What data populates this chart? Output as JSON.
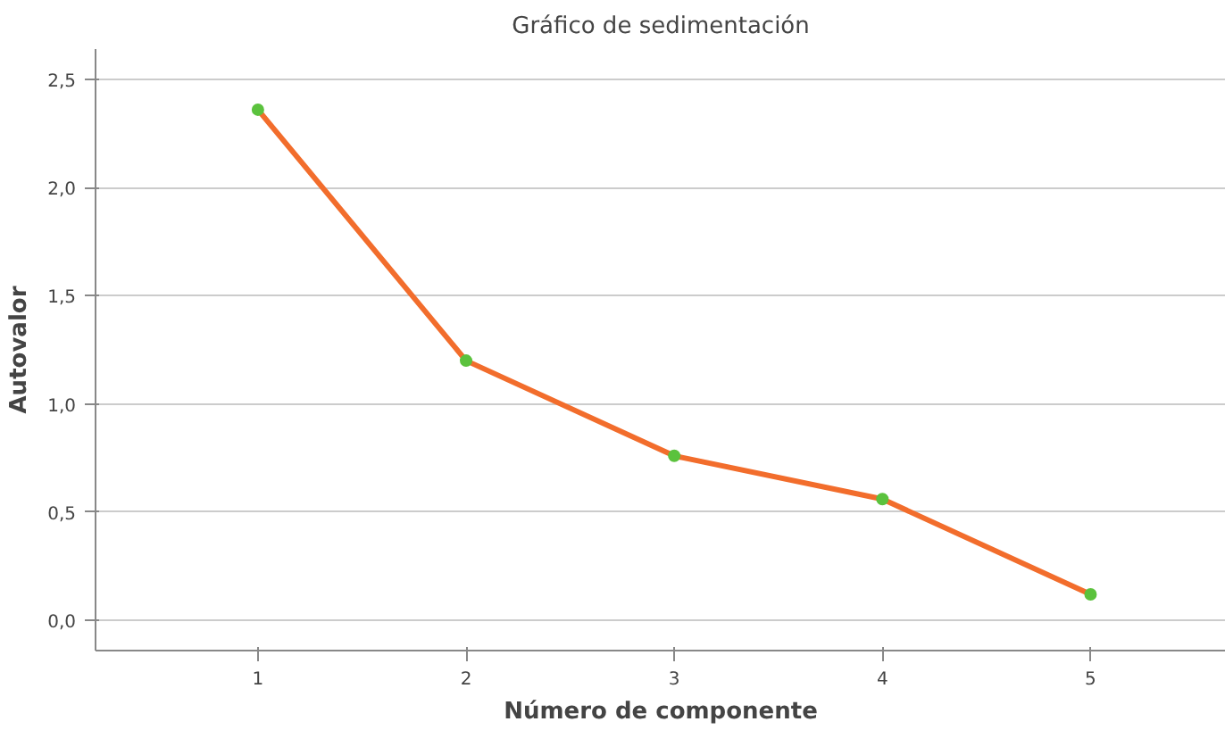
{
  "chart_data": {
    "type": "line",
    "title": "Gráfico de sedimentación",
    "xlabel": "Número de componente",
    "ylabel": "Autovalor",
    "x": [
      1,
      2,
      3,
      4,
      5
    ],
    "series": [
      {
        "color": "#f26d2c",
        "marker": "none",
        "values": [
          2.36,
          1.2,
          0.76,
          0.56,
          0.12
        ]
      },
      {
        "type": "scatter",
        "color": "#5bc23d",
        "values": [
          2.36,
          1.2,
          0.76,
          0.56,
          0.12
        ]
      }
    ],
    "xlim": [
      0.22,
      5.65
    ],
    "xticks": [
      1,
      2,
      3,
      4,
      5
    ],
    "ylim": [
      -0.14,
      2.64
    ],
    "yticks": [
      {
        "value": 0,
        "label": "0,0"
      },
      {
        "value": 0.5,
        "label": "0,5"
      },
      {
        "value": 1,
        "label": "1,0"
      },
      {
        "value": 1.5,
        "label": "1,5"
      },
      {
        "value": 2,
        "label": "2,0"
      },
      {
        "value": 2.5,
        "label": "2,5"
      }
    ],
    "grid": "y",
    "marker": "circle",
    "line_style": "solid"
  }
}
